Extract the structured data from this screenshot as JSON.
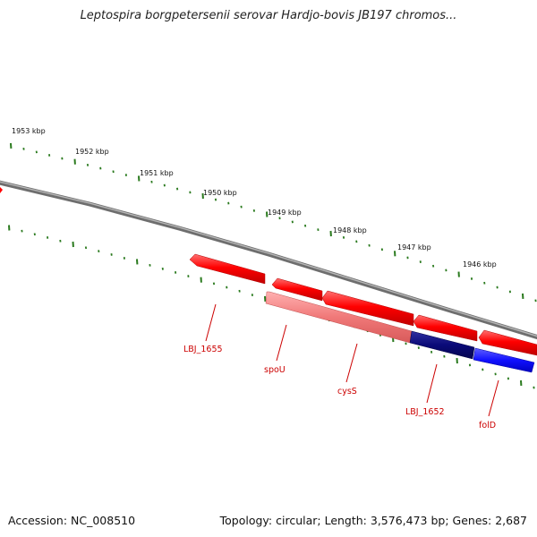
{
  "title": "Leptospira borgpetersenii serovar Hardjo-bovis JB197 chromos...",
  "footer": {
    "accession": "Accession: NC_008510",
    "summary": "Topology: circular; Length: 3,576,473 bp; Genes: 2,687"
  },
  "scale_labels": [
    "1953 kbp",
    "1952 kbp",
    "1951 kbp",
    "1950 kbp",
    "1949 kbp",
    "1948 kbp",
    "1947 kbp",
    "1946 kbp"
  ],
  "gene_labels": [
    "LBJ_1655",
    "spoU",
    "cysS",
    "LBJ_1652",
    "folD"
  ],
  "colors": {
    "backbone": "#808080",
    "tick": "#2a7a1e",
    "forward_gene": "#ff0000",
    "reverse_faded": "#f08080",
    "reverse_dark": "#0a0a78",
    "reverse_blue": "#1010ff",
    "label": "#cc0000"
  }
}
